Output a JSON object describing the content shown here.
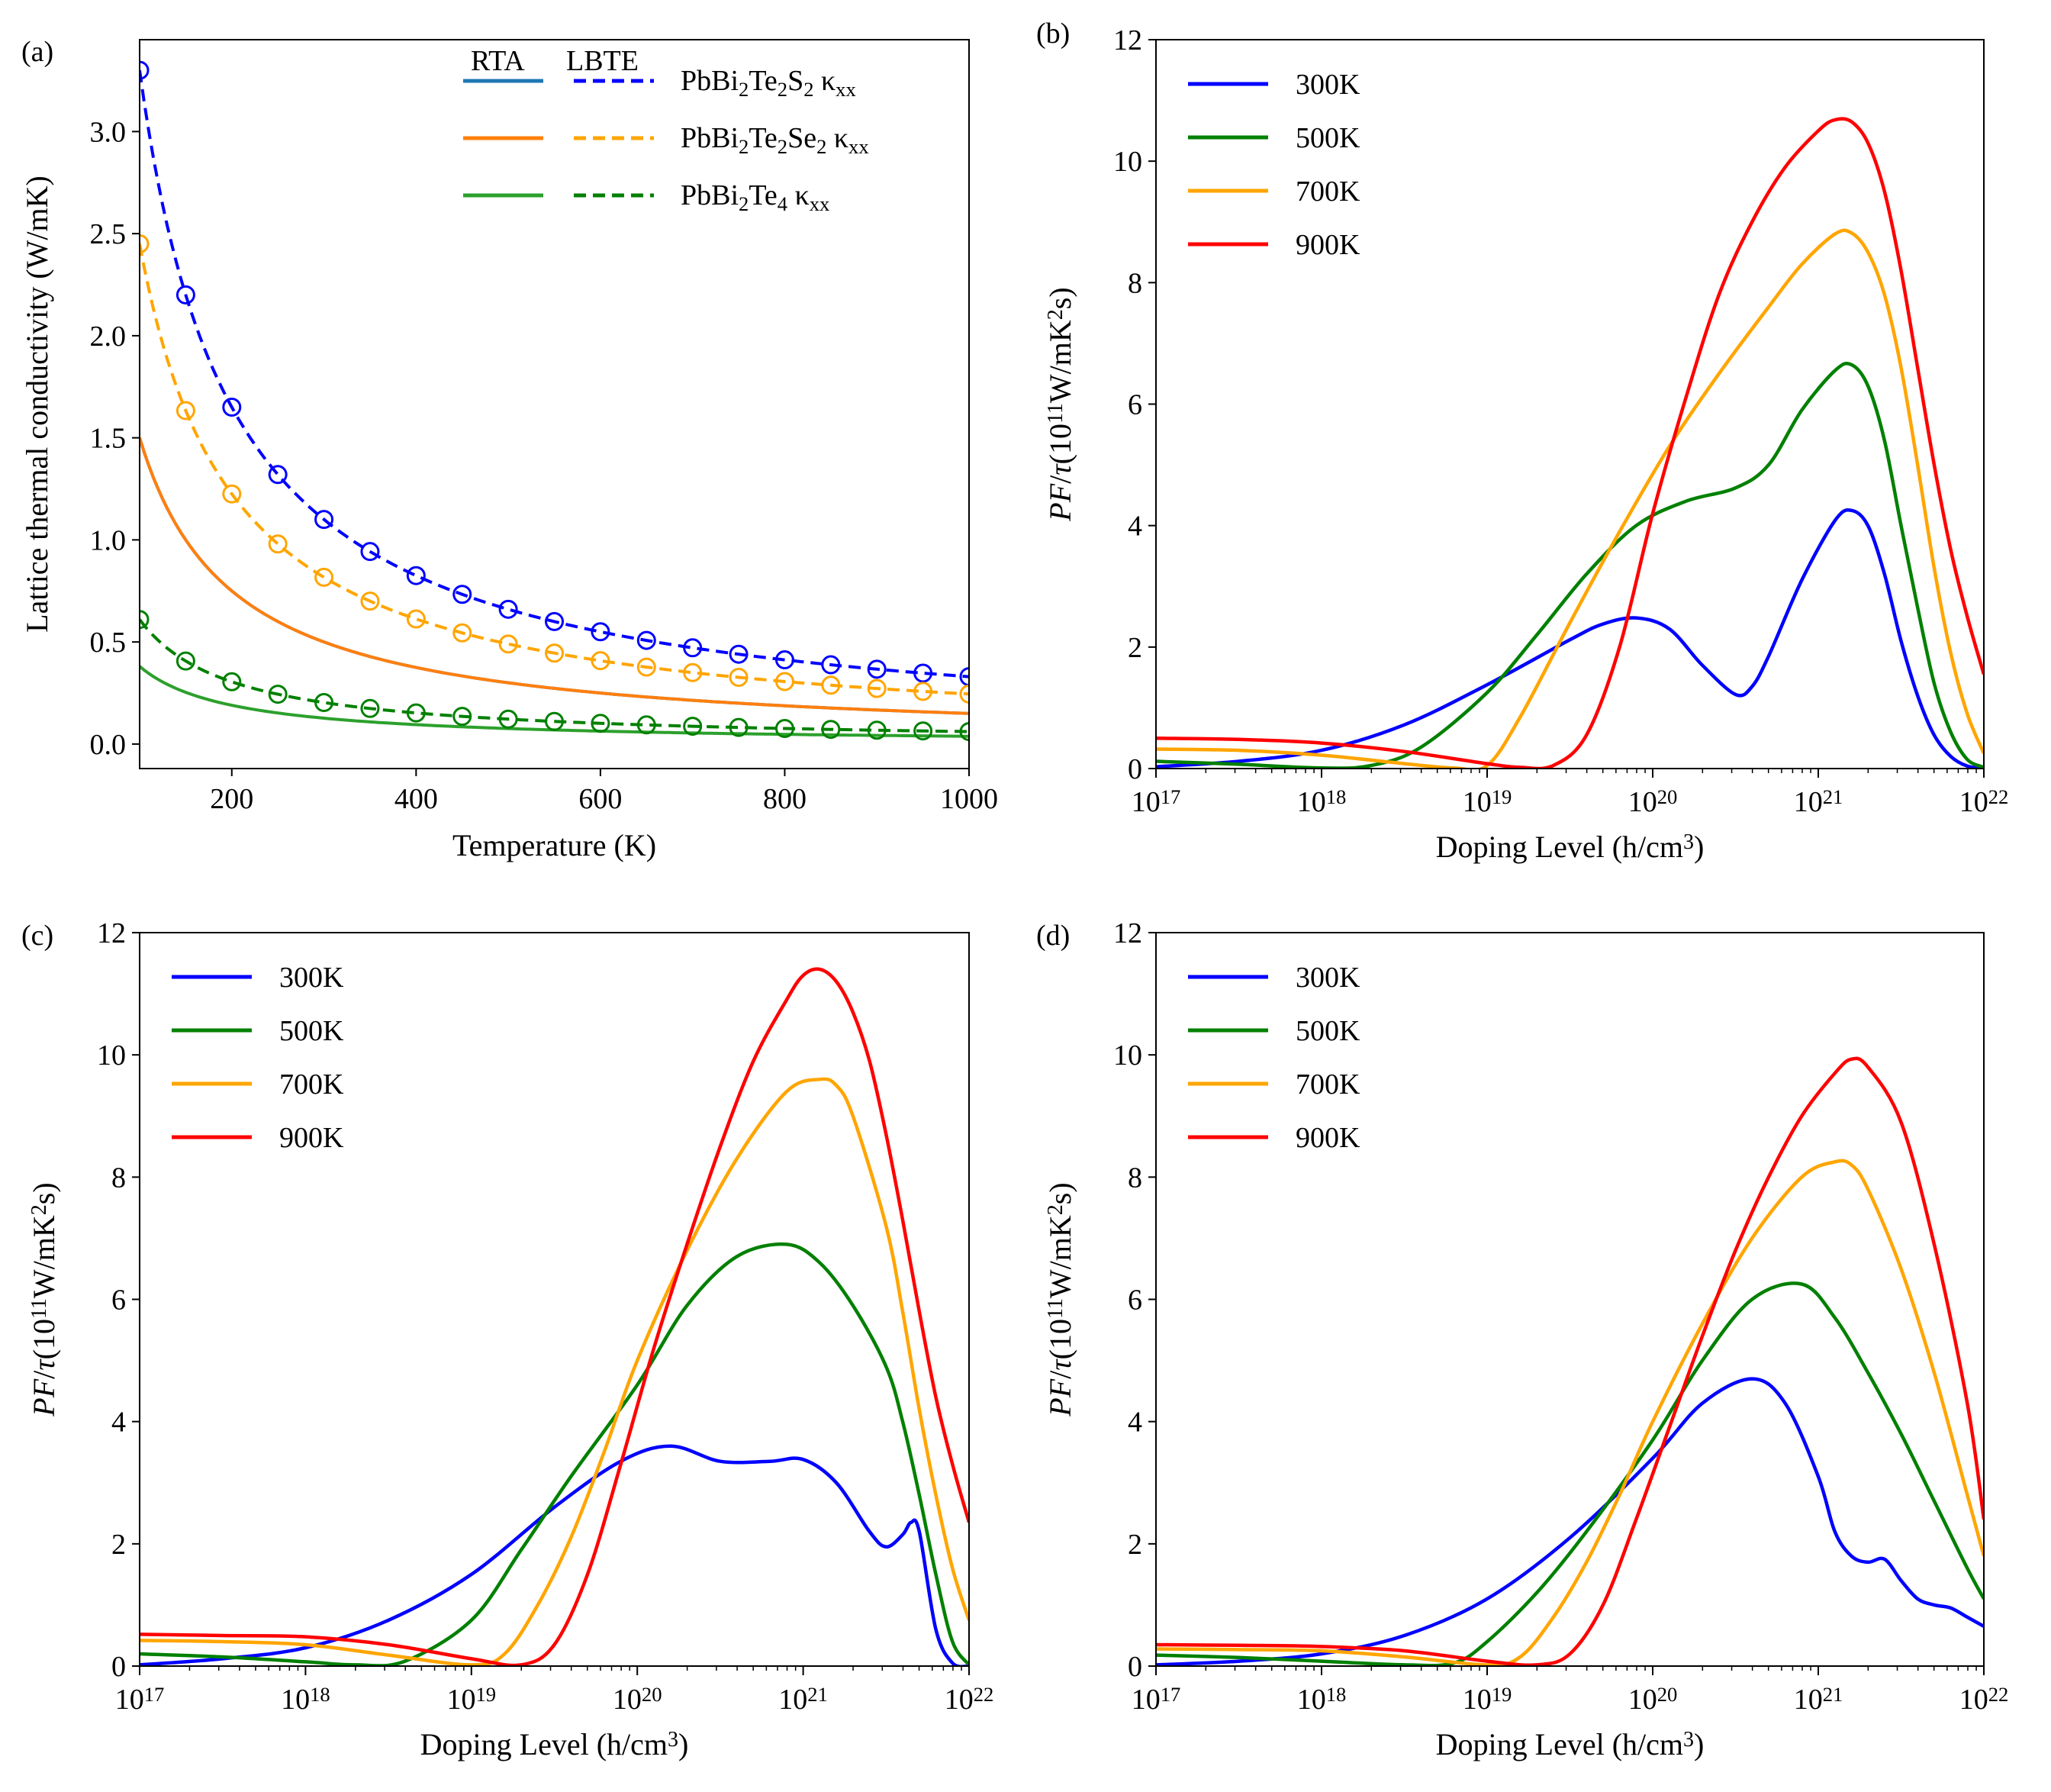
{
  "chart_data": [
    {
      "panel": "(a)",
      "type": "line",
      "xlabel": "Temperature (K)",
      "ylabel": "Lattice thermal conductivity (W/mK)",
      "xlim": [
        100,
        1000
      ],
      "ylim": [
        -0.12,
        3.45
      ],
      "xticks": [
        200,
        400,
        600,
        800,
        1000
      ],
      "xtick_labels": [
        "200",
        "400",
        "600",
        "800",
        "1000"
      ],
      "yticks": [
        0,
        0.5,
        1,
        1.5,
        2,
        2.5,
        3
      ],
      "ytick_labels": [
        "0.0",
        "0.5",
        "1.0",
        "1.5",
        "2.0",
        "2.5",
        "3.0"
      ],
      "legend_headers": [
        "RTA",
        "LBTE"
      ],
      "legend_position": "top-right",
      "series": [
        {
          "name": "PbBi2Te2S2 κxx",
          "label_main": "PbBi",
          "label_parts": [
            "2",
            "Te",
            "2",
            "S",
            "2"
          ],
          "label_kappa": " κ",
          "label_sub": "xx",
          "rta_color": "#1f77b4",
          "lbte_color": "#0000ff",
          "rta_a": 150,
          "lbte_a": 330,
          "marker_x": [
            100,
            150,
            200,
            250,
            300,
            350,
            400,
            450,
            500,
            550,
            600,
            650,
            700,
            750,
            800,
            850,
            900,
            950,
            1000
          ]
        },
        {
          "name": "PbBi2Te2Se2 κxx",
          "label_main": "PbBi",
          "label_parts": [
            "2",
            "Te",
            "2",
            "Se",
            "2"
          ],
          "label_kappa": " κ",
          "label_sub": "xx",
          "rta_color": "#ff7f0e",
          "lbte_color": "#ffa500",
          "rta_a": 150,
          "lbte_a": 245,
          "marker_x": [
            100,
            150,
            200,
            250,
            300,
            350,
            400,
            450,
            500,
            550,
            600,
            650,
            700,
            750,
            800,
            850,
            900,
            950,
            1000
          ]
        },
        {
          "name": "PbBi2Te4 κxx",
          "label_main": "PbBi",
          "label_parts": [
            "2",
            "Te",
            "4",
            "",
            ""
          ],
          "label_kappa": " κ",
          "label_sub": "xx",
          "rta_color": "#2ca02c",
          "lbte_color": "#008000",
          "rta_a": 38,
          "lbte_a": 61,
          "marker_x": [
            100,
            150,
            200,
            250,
            300,
            350,
            400,
            450,
            500,
            550,
            600,
            650,
            700,
            750,
            800,
            850,
            900,
            950,
            1000
          ]
        }
      ]
    },
    {
      "panel": "(b)",
      "type": "line",
      "xscale": "log",
      "xlabel_main": "Doping Level (h/cm",
      "xlabel_sup": "3",
      "xlabel_end": ")",
      "ylabel_parts": [
        "PF/τ(10",
        "11",
        "W/mK",
        "2",
        "s)"
      ],
      "xlim": [
        1e+17,
        1e+22
      ],
      "ylim": [
        0,
        12
      ],
      "xtick_base": "10",
      "xtick_exps": [
        "17",
        "18",
        "19",
        "20",
        "21",
        "22"
      ],
      "yticks": [
        0,
        2,
        4,
        6,
        8,
        10,
        12
      ],
      "ytick_labels": [
        "0",
        "2",
        "4",
        "6",
        "8",
        "10",
        "12"
      ],
      "legend_position": "top-left",
      "series": [
        {
          "name": "300K",
          "color": "#0000ff",
          "x_log10": [
            17.0,
            17.5,
            18.0,
            18.5,
            19.0,
            19.5,
            19.7,
            19.9,
            20.1,
            20.3,
            20.5,
            20.6,
            20.7,
            20.9,
            21.1,
            21.2,
            21.3,
            21.4,
            21.5,
            21.6,
            21.7,
            21.8,
            21.9,
            22.0
          ],
          "values": [
            0.03,
            0.12,
            0.3,
            0.72,
            1.38,
            2.12,
            2.38,
            2.48,
            2.3,
            1.7,
            1.22,
            1.35,
            1.85,
            3.1,
            4.08,
            4.25,
            4.0,
            3.2,
            2.1,
            1.2,
            0.55,
            0.2,
            0.04,
            0.0
          ]
        },
        {
          "name": "500K",
          "color": "#008000",
          "x_log10": [
            17.0,
            17.5,
            18.0,
            18.3,
            18.6,
            19.0,
            19.3,
            19.6,
            19.9,
            20.2,
            20.5,
            20.7,
            20.9,
            21.1,
            21.2,
            21.3,
            21.4,
            21.5,
            21.6,
            21.7,
            21.8,
            21.9,
            22.0
          ],
          "values": [
            0.12,
            0.07,
            0.01,
            0.05,
            0.35,
            1.25,
            2.2,
            3.2,
            4.0,
            4.4,
            4.62,
            5.0,
            5.9,
            6.55,
            6.65,
            6.3,
            5.4,
            4.0,
            2.65,
            1.4,
            0.6,
            0.15,
            0.02
          ]
        },
        {
          "name": "700K",
          "color": "#ffa500",
          "x_log10": [
            17.0,
            17.5,
            18.0,
            18.5,
            18.8,
            19.0,
            19.2,
            19.5,
            19.8,
            20.1,
            20.4,
            20.7,
            20.9,
            21.1,
            21.2,
            21.3,
            21.4,
            21.5,
            21.6,
            21.7,
            21.8,
            21.9,
            22.0
          ],
          "values": [
            0.32,
            0.3,
            0.22,
            0.08,
            0.01,
            0.05,
            0.85,
            2.4,
            3.9,
            5.3,
            6.5,
            7.6,
            8.3,
            8.8,
            8.82,
            8.5,
            7.8,
            6.6,
            5.0,
            3.3,
            1.9,
            0.9,
            0.25
          ]
        },
        {
          "name": "900K",
          "color": "#ff0000",
          "x_log10": [
            17.0,
            17.5,
            18.0,
            18.5,
            19.0,
            19.2,
            19.4,
            19.6,
            19.8,
            20.0,
            20.2,
            20.4,
            20.6,
            20.8,
            21.0,
            21.1,
            21.2,
            21.3,
            21.4,
            21.5,
            21.6,
            21.7,
            21.8,
            21.9,
            22.0
          ],
          "values": [
            0.5,
            0.48,
            0.42,
            0.28,
            0.08,
            0.02,
            0.05,
            0.55,
            2.0,
            4.2,
            6.1,
            7.8,
            9.0,
            9.9,
            10.5,
            10.68,
            10.65,
            10.3,
            9.5,
            8.2,
            6.6,
            5.0,
            3.6,
            2.5,
            1.55
          ]
        }
      ]
    },
    {
      "panel": "(c)",
      "type": "line",
      "xscale": "log",
      "xlabel_main": "Doping Level (h/cm",
      "xlabel_sup": "3",
      "xlabel_end": ")",
      "ylabel_parts": [
        "PF/τ(10",
        "11",
        "W/mK",
        "2",
        "s)"
      ],
      "xlim": [
        1e+17,
        1e+22
      ],
      "ylim": [
        0,
        12
      ],
      "xtick_base": "10",
      "xtick_exps": [
        "17",
        "18",
        "19",
        "20",
        "21",
        "22"
      ],
      "yticks": [
        0,
        2,
        4,
        6,
        8,
        10,
        12
      ],
      "ytick_labels": [
        "0",
        "2",
        "4",
        "6",
        "8",
        "10",
        "12"
      ],
      "legend_position": "top-left",
      "series": [
        {
          "name": "300K",
          "color": "#0000ff",
          "x_log10": [
            17.0,
            17.5,
            18.0,
            18.5,
            19.0,
            19.5,
            19.9,
            20.2,
            20.5,
            20.8,
            21.0,
            21.2,
            21.4,
            21.5,
            21.6,
            21.65,
            21.7,
            21.8,
            21.9,
            22.0
          ],
          "values": [
            0.02,
            0.12,
            0.3,
            0.75,
            1.5,
            2.6,
            3.35,
            3.6,
            3.35,
            3.35,
            3.38,
            3.0,
            2.2,
            1.95,
            2.15,
            2.35,
            2.2,
            0.6,
            0.05,
            0.0
          ]
        },
        {
          "name": "500K",
          "color": "#008000",
          "x_log10": [
            17.0,
            17.5,
            18.0,
            18.3,
            18.6,
            19.0,
            19.3,
            19.6,
            20.0,
            20.3,
            20.6,
            20.9,
            21.1,
            21.3,
            21.5,
            21.6,
            21.7,
            21.8,
            21.9,
            22.0
          ],
          "values": [
            0.2,
            0.15,
            0.07,
            0.02,
            0.08,
            0.75,
            1.9,
            3.1,
            4.6,
            5.9,
            6.7,
            6.9,
            6.6,
            5.9,
            4.9,
            4.0,
            2.8,
            1.5,
            0.4,
            0.02
          ]
        },
        {
          "name": "700K",
          "color": "#ffa500",
          "x_log10": [
            17.0,
            17.5,
            18.0,
            18.5,
            19.0,
            19.2,
            19.4,
            19.6,
            19.8,
            20.0,
            20.3,
            20.6,
            20.9,
            21.1,
            21.2,
            21.3,
            21.5,
            21.6,
            21.7,
            21.8,
            21.9,
            22.0
          ],
          "values": [
            0.42,
            0.4,
            0.35,
            0.18,
            0.02,
            0.2,
            1.0,
            2.1,
            3.5,
            5.0,
            6.8,
            8.3,
            9.4,
            9.6,
            9.5,
            9.0,
            7.2,
            5.8,
            4.2,
            2.8,
            1.6,
            0.75
          ]
        },
        {
          "name": "900K",
          "color": "#ff0000",
          "x_log10": [
            17.0,
            17.5,
            18.0,
            18.5,
            19.0,
            19.3,
            19.5,
            19.7,
            19.9,
            20.1,
            20.3,
            20.5,
            20.7,
            20.9,
            21.0,
            21.1,
            21.2,
            21.3,
            21.4,
            21.5,
            21.6,
            21.7,
            21.8,
            21.9,
            22.0
          ],
          "values": [
            0.52,
            0.5,
            0.48,
            0.35,
            0.12,
            0.02,
            0.35,
            1.5,
            3.3,
            5.2,
            6.9,
            8.5,
            9.9,
            10.9,
            11.3,
            11.4,
            11.2,
            10.7,
            9.9,
            8.7,
            7.3,
            5.8,
            4.4,
            3.3,
            2.35
          ]
        }
      ]
    },
    {
      "panel": "(d)",
      "type": "line",
      "xscale": "log",
      "xlabel_main": "Doping Level (h/cm",
      "xlabel_sup": "3",
      "xlabel_end": ")",
      "ylabel_parts": [
        "PF/τ(10",
        "11",
        "W/mK",
        "2",
        "s)"
      ],
      "xlim": [
        1e+17,
        1e+22
      ],
      "ylim": [
        0,
        12
      ],
      "xtick_base": "10",
      "xtick_exps": [
        "17",
        "18",
        "19",
        "20",
        "21",
        "22"
      ],
      "yticks": [
        0,
        2,
        4,
        6,
        8,
        10,
        12
      ],
      "ytick_labels": [
        "0",
        "2",
        "4",
        "6",
        "8",
        "10",
        "12"
      ],
      "legend_position": "top-left",
      "series": [
        {
          "name": "300K",
          "color": "#0000ff",
          "x_log10": [
            17.0,
            17.5,
            18.0,
            18.5,
            19.0,
            19.5,
            20.0,
            20.3,
            20.6,
            20.8,
            21.0,
            21.1,
            21.2,
            21.3,
            21.4,
            21.5,
            21.6,
            21.7,
            21.8,
            21.9,
            22.0
          ],
          "values": [
            0.02,
            0.08,
            0.2,
            0.5,
            1.1,
            2.1,
            3.4,
            4.3,
            4.7,
            4.3,
            3.1,
            2.2,
            1.8,
            1.7,
            1.75,
            1.4,
            1.1,
            1.0,
            0.95,
            0.8,
            0.65
          ]
        },
        {
          "name": "500K",
          "color": "#008000",
          "x_log10": [
            17.0,
            17.5,
            18.0,
            18.5,
            18.8,
            19.0,
            19.3,
            19.6,
            20.0,
            20.3,
            20.6,
            20.9,
            21.1,
            21.3,
            21.5,
            21.7,
            21.9,
            22.0
          ],
          "values": [
            0.18,
            0.14,
            0.08,
            0.02,
            0.05,
            0.4,
            1.2,
            2.2,
            3.7,
            5.0,
            6.0,
            6.25,
            5.7,
            4.8,
            3.8,
            2.7,
            1.6,
            1.1
          ]
        },
        {
          "name": "700K",
          "color": "#ffa500",
          "x_log10": [
            17.0,
            17.5,
            18.0,
            18.5,
            19.0,
            19.2,
            19.4,
            19.6,
            19.8,
            20.0,
            20.3,
            20.6,
            20.9,
            21.1,
            21.2,
            21.3,
            21.5,
            21.7,
            21.9,
            22.0
          ],
          "values": [
            0.28,
            0.27,
            0.25,
            0.15,
            0.02,
            0.15,
            0.8,
            1.7,
            2.8,
            4.0,
            5.6,
            7.0,
            8.0,
            8.25,
            8.2,
            7.8,
            6.5,
            4.8,
            2.8,
            1.8
          ]
        },
        {
          "name": "900K",
          "color": "#ff0000",
          "x_log10": [
            17.0,
            17.5,
            18.0,
            18.5,
            19.0,
            19.3,
            19.5,
            19.7,
            19.9,
            20.1,
            20.3,
            20.5,
            20.7,
            20.9,
            21.1,
            21.2,
            21.3,
            21.5,
            21.7,
            21.9,
            22.0
          ],
          "values": [
            0.35,
            0.34,
            0.32,
            0.25,
            0.08,
            0.02,
            0.2,
            1.0,
            2.4,
            3.9,
            5.4,
            6.8,
            8.0,
            9.0,
            9.7,
            9.93,
            9.8,
            8.9,
            6.9,
            4.3,
            2.4
          ]
        }
      ]
    }
  ]
}
